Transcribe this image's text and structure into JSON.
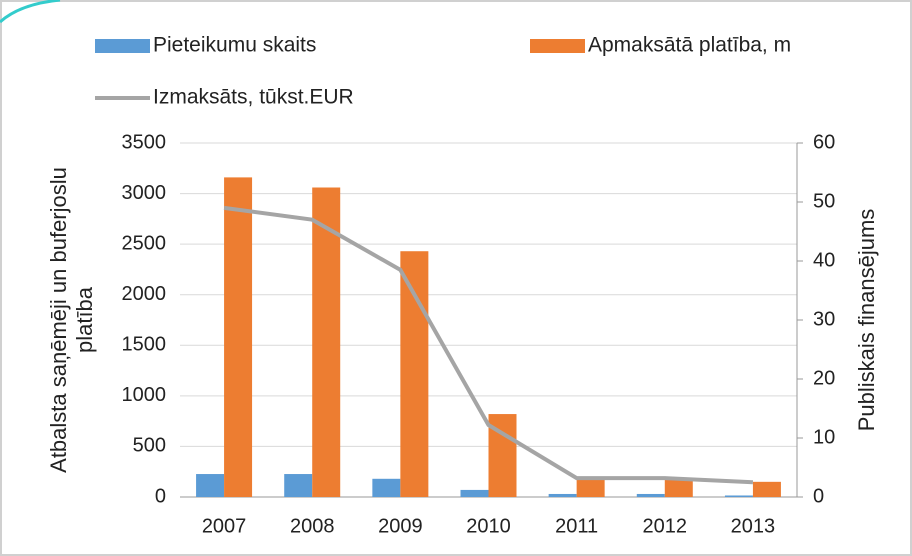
{
  "chart_data": {
    "type": "bar",
    "categories": [
      "2007",
      "2008",
      "2009",
      "2010",
      "2011",
      "2012",
      "2013"
    ],
    "series": [
      {
        "name": "Pieteikumu skaits",
        "color": "#5b9bd5",
        "values": [
          227,
          227,
          180,
          70,
          30,
          30,
          15
        ]
      },
      {
        "name": "Apmaksātā platība, m",
        "color": "#ed7d31",
        "values": [
          3160,
          3060,
          2430,
          820,
          170,
          170,
          150
        ]
      },
      {
        "name": "Izmaksāts, tūkst.EUR",
        "color": "#a5a5a5",
        "type": "line",
        "axis": "y2",
        "values": [
          49,
          47,
          38.5,
          12.2,
          3.2,
          3.2,
          2.5
        ]
      }
    ],
    "ylabel": [
      "Atbalsta saņēmēji un buferjoslu",
      "platība"
    ],
    "y2label": "Publiskais finansējums",
    "ylim": [
      0,
      3500
    ],
    "yticks": [
      0,
      500,
      1000,
      1500,
      2000,
      2500,
      3000,
      3500
    ],
    "y2lim": [
      0,
      60
    ],
    "y2ticks": [
      0,
      10,
      20,
      30,
      40,
      50,
      60
    ],
    "grid": true
  }
}
